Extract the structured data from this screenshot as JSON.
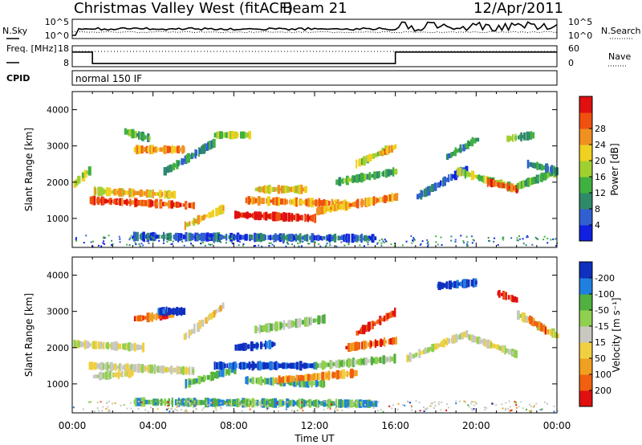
{
  "header": {
    "station": "Christmas Valley West (fitACF)",
    "beam": "Beam 21",
    "date": "12/Apr/2011"
  },
  "colors": {
    "power": [
      "#1020e0",
      "#3060d0",
      "#2f8a6a",
      "#40b040",
      "#a0d030",
      "#f0d020",
      "#f09020",
      "#f05010",
      "#e01010"
    ],
    "velocity": [
      "#1030c0",
      "#2080e0",
      "#50b040",
      "#90d050",
      "#c8c8c0",
      "#f0d040",
      "#f0a020",
      "#f06010",
      "#e01010"
    ]
  },
  "chart_data": [
    {
      "type": "line",
      "panel": "noise",
      "series": [
        {
          "name": "N.Sky"
        },
        {
          "name": "N.Search"
        }
      ],
      "left_ticks": [
        "10^5",
        "10^0"
      ],
      "right_ticks": [
        "10^5",
        "10^0"
      ]
    },
    {
      "type": "line",
      "panel": "frequency",
      "series": [
        {
          "name": "Freq. [MHz]"
        },
        {
          "name": "Nave"
        }
      ],
      "left_ticks": [
        "18",
        "8"
      ],
      "right_ticks": [
        "60",
        "0"
      ],
      "freq_steps": [
        {
          "t": 0,
          "f": 15
        },
        {
          "t": 1,
          "f": 9.5
        },
        {
          "t": 16,
          "f": 15
        },
        {
          "t": 24,
          "f": 15
        }
      ]
    },
    {
      "type": "table",
      "panel": "cpid",
      "label": "CPID",
      "text": "normal 150 IF"
    },
    {
      "type": "heatmap",
      "panel": "power",
      "ylabel": "Slant Range [km]",
      "yticks": [
        1000,
        2000,
        3000,
        4000
      ],
      "ylim": [
        200,
        4500
      ],
      "xlim": [
        0,
        24
      ],
      "colorbar_label": "Power [dB]",
      "colorbar_ticks": [
        4,
        8,
        12,
        16,
        20,
        24,
        28
      ],
      "bands": [
        {
          "t0": 0.0,
          "t1": 0.8,
          "r0": 1950,
          "r1": 2350,
          "lvl": 4
        },
        {
          "t0": 0.8,
          "t1": 6.0,
          "r0": 1500,
          "r1": 1350,
          "lvl": 7
        },
        {
          "t0": 1.0,
          "t1": 5.0,
          "r0": 1750,
          "r1": 1650,
          "lvl": 5
        },
        {
          "t0": 3.0,
          "t1": 5.5,
          "r0": 2900,
          "r1": 2900,
          "lvl": 6
        },
        {
          "t0": 2.5,
          "t1": 3.8,
          "r0": 3400,
          "r1": 3200,
          "lvl": 3
        },
        {
          "t0": 4.5,
          "t1": 7.0,
          "r0": 2300,
          "r1": 3100,
          "lvl": 2
        },
        {
          "t0": 5.5,
          "t1": 7.5,
          "r0": 800,
          "r1": 1300,
          "lvl": 5
        },
        {
          "t0": 7.0,
          "t1": 8.8,
          "r0": 3300,
          "r1": 3300,
          "lvl": 4
        },
        {
          "t0": 8.0,
          "t1": 12.0,
          "r0": 1100,
          "r1": 1000,
          "lvl": 8
        },
        {
          "t0": 8.5,
          "t1": 13.5,
          "r0": 1500,
          "r1": 1400,
          "lvl": 6
        },
        {
          "t0": 12.0,
          "t1": 16.0,
          "r0": 1200,
          "r1": 1600,
          "lvl": 6
        },
        {
          "t0": 9.0,
          "t1": 11.5,
          "r0": 1800,
          "r1": 1800,
          "lvl": 5
        },
        {
          "t0": 13.0,
          "t1": 16.0,
          "r0": 2000,
          "r1": 2300,
          "lvl": 3
        },
        {
          "t0": 14.0,
          "t1": 15.5,
          "r0": 2500,
          "r1": 2900,
          "lvl": 4
        },
        {
          "t0": 15.2,
          "t1": 16.0,
          "r0": 2800,
          "r1": 3000,
          "lvl": 6
        },
        {
          "t0": 3.0,
          "t1": 15.0,
          "r0": 500,
          "r1": 450,
          "lvl": 1
        },
        {
          "t0": 17.0,
          "t1": 19.5,
          "r0": 1600,
          "r1": 2400,
          "lvl": 1
        },
        {
          "t0": 18.5,
          "t1": 20.0,
          "r0": 2700,
          "r1": 3200,
          "lvl": 2
        },
        {
          "t0": 19.0,
          "t1": 22.0,
          "r0": 2300,
          "r1": 1800,
          "lvl": 4
        },
        {
          "t0": 20.5,
          "t1": 22.0,
          "r0": 2000,
          "r1": 1800,
          "lvl": 7
        },
        {
          "t0": 22.0,
          "t1": 24.0,
          "r0": 1900,
          "r1": 2300,
          "lvl": 3
        },
        {
          "t0": 22.5,
          "t1": 24.0,
          "r0": 2500,
          "r1": 2300,
          "lvl": 2
        },
        {
          "t0": 21.5,
          "t1": 22.8,
          "r0": 3200,
          "r1": 3300,
          "lvl": 3
        }
      ]
    },
    {
      "type": "heatmap",
      "panel": "velocity",
      "ylabel": "Slant Range [km]",
      "yticks": [
        1000,
        2000,
        3000,
        4000
      ],
      "ylim": [
        200,
        4500
      ],
      "xlim": [
        0,
        24
      ],
      "xticks": [
        "00:00",
        "04:00",
        "08:00",
        "12:00",
        "16:00",
        "20:00",
        "00:00"
      ],
      "xlabel": "Time UT",
      "colorbar_label": "Velocity [m s⁻¹]",
      "colorbar_ticks": [
        "200",
        "100",
        "50",
        "15",
        "-15",
        "-50",
        "-100",
        "-200"
      ],
      "bands": [
        {
          "t0": 0.0,
          "t1": 3.5,
          "r0": 2100,
          "r1": 2000,
          "lvl": 4
        },
        {
          "t0": 0.8,
          "t1": 6.0,
          "r0": 1500,
          "r1": 1350,
          "lvl": 4
        },
        {
          "t0": 1.0,
          "t1": 3.0,
          "r0": 1200,
          "r1": 1300,
          "lvl": 4
        },
        {
          "t0": 3.0,
          "t1": 5.0,
          "r0": 2800,
          "r1": 2900,
          "lvl": 7
        },
        {
          "t0": 4.2,
          "t1": 5.5,
          "r0": 3000,
          "r1": 3000,
          "lvl": 0
        },
        {
          "t0": 5.5,
          "t1": 7.5,
          "r0": 2300,
          "r1": 3200,
          "lvl": 5
        },
        {
          "t0": 5.5,
          "t1": 8.0,
          "r0": 1000,
          "r1": 1400,
          "lvl": 2
        },
        {
          "t0": 7.0,
          "t1": 12.0,
          "r0": 1500,
          "r1": 1500,
          "lvl": 0
        },
        {
          "t0": 8.5,
          "t1": 12.5,
          "r0": 1100,
          "r1": 1000,
          "lvl": 2
        },
        {
          "t0": 8.0,
          "t1": 10.0,
          "r0": 2000,
          "r1": 2100,
          "lvl": 0
        },
        {
          "t0": 10.0,
          "t1": 14.0,
          "r0": 1100,
          "r1": 1300,
          "lvl": 6
        },
        {
          "t0": 12.0,
          "t1": 16.0,
          "r0": 1500,
          "r1": 1700,
          "lvl": 3
        },
        {
          "t0": 13.5,
          "t1": 16.0,
          "r0": 2000,
          "r1": 2200,
          "lvl": 7
        },
        {
          "t0": 14.0,
          "t1": 16.0,
          "r0": 2400,
          "r1": 3000,
          "lvl": 8
        },
        {
          "t0": 9.0,
          "t1": 12.5,
          "r0": 2500,
          "r1": 2800,
          "lvl": 3
        },
        {
          "t0": 3.0,
          "t1": 15.0,
          "r0": 500,
          "r1": 450,
          "lvl": 2
        },
        {
          "t0": 16.5,
          "t1": 19.5,
          "r0": 1700,
          "r1": 2400,
          "lvl": 4
        },
        {
          "t0": 18.0,
          "t1": 20.0,
          "r0": 3700,
          "r1": 3800,
          "lvl": 0
        },
        {
          "t0": 19.5,
          "t1": 22.0,
          "r0": 2300,
          "r1": 1800,
          "lvl": 4
        },
        {
          "t0": 22.0,
          "t1": 24.0,
          "r0": 2900,
          "r1": 2300,
          "lvl": 4
        },
        {
          "t0": 22.5,
          "t1": 23.5,
          "r0": 2800,
          "r1": 2400,
          "lvl": 7
        },
        {
          "t0": 21.0,
          "t1": 22.0,
          "r0": 3500,
          "r1": 3300,
          "lvl": 8
        }
      ]
    }
  ]
}
